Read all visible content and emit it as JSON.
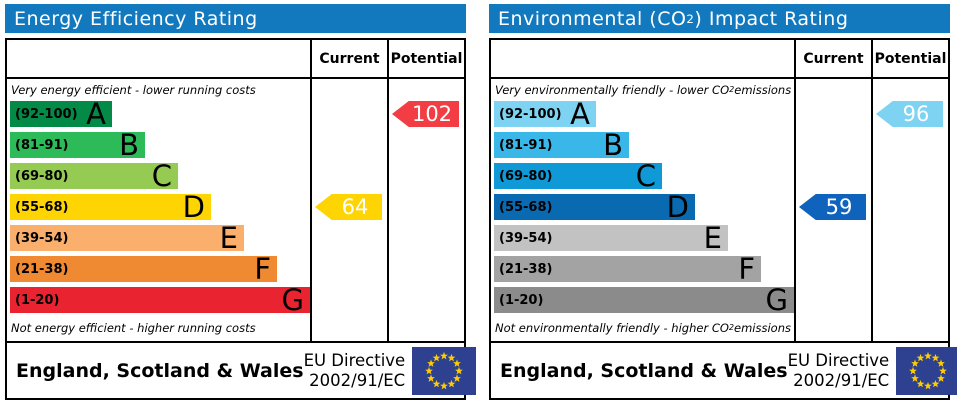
{
  "labels": {
    "current": "Current",
    "potential": "Potential"
  },
  "panels": [
    {
      "id": "energy-efficiency",
      "title": {
        "pre": "Energy Efficiency Rating",
        "sub": "",
        "post": ""
      },
      "header_color": "#1379bf",
      "top_caption": {
        "pre": "Very energy efficient - lower running costs",
        "sub": "",
        "post": ""
      },
      "bottom_caption": {
        "pre": "Not energy efficient - higher running costs",
        "sub": "",
        "post": ""
      },
      "bands": [
        {
          "letter": "A",
          "range": "(92-100)",
          "color": "#028a46",
          "width_pct": 34
        },
        {
          "letter": "B",
          "range": "(81-91)",
          "color": "#2dba58",
          "width_pct": 45
        },
        {
          "letter": "C",
          "range": "(69-80)",
          "color": "#95ca53",
          "width_pct": 56
        },
        {
          "letter": "D",
          "range": "(55-68)",
          "color": "#fed402",
          "width_pct": 67
        },
        {
          "letter": "E",
          "range": "(39-54)",
          "color": "#fbaf6d",
          "width_pct": 78
        },
        {
          "letter": "F",
          "range": "(21-38)",
          "color": "#f08a32",
          "width_pct": 89
        },
        {
          "letter": "G",
          "range": "(1-20)",
          "color": "#ea2330",
          "width_pct": 100
        }
      ],
      "current": {
        "value": 64,
        "color": "#fed402"
      },
      "potential": {
        "value": 102,
        "color": "#f13d43"
      },
      "footer": {
        "region": "England, Scotland & Wales",
        "directive_line1": "EU Directive",
        "directive_line2": "2002/91/EC"
      }
    },
    {
      "id": "environmental-impact",
      "title": {
        "pre": "Environmental (CO",
        "sub": "2",
        "post": ") Impact Rating"
      },
      "header_color": "#1379bf",
      "top_caption": {
        "pre": "Very environmentally friendly - lower CO",
        "sub": "2",
        "post": " emissions"
      },
      "bottom_caption": {
        "pre": "Not environmentally friendly - higher CO",
        "sub": "2",
        "post": " emissions"
      },
      "bands": [
        {
          "letter": "A",
          "range": "(92-100)",
          "color": "#7ed3f3",
          "width_pct": 34
        },
        {
          "letter": "B",
          "range": "(81-91)",
          "color": "#39b7e9",
          "width_pct": 45
        },
        {
          "letter": "C",
          "range": "(69-80)",
          "color": "#0f99d6",
          "width_pct": 56
        },
        {
          "letter": "D",
          "range": "(55-68)",
          "color": "#0a6ab1",
          "width_pct": 67
        },
        {
          "letter": "E",
          "range": "(39-54)",
          "color": "#c2c2c2",
          "width_pct": 78
        },
        {
          "letter": "F",
          "range": "(21-38)",
          "color": "#a3a3a3",
          "width_pct": 89
        },
        {
          "letter": "G",
          "range": "(1-20)",
          "color": "#8b8b8b",
          "width_pct": 100
        }
      ],
      "current": {
        "value": 59,
        "color": "#0f63bd"
      },
      "potential": {
        "value": 96,
        "color": "#7ed3f3"
      },
      "footer": {
        "region": "England, Scotland & Wales",
        "directive_line1": "EU Directive",
        "directive_line2": "2002/91/EC"
      }
    }
  ],
  "eu_flag": {
    "background": "#2e4191",
    "star_color": "#ffcc00",
    "star_count": 12
  },
  "chart_data": [
    {
      "type": "bar",
      "title": "Energy Efficiency Rating",
      "subtitle_top": "Very energy efficient - lower running costs",
      "subtitle_bottom": "Not energy efficient - higher running costs",
      "categories": [
        "A",
        "B",
        "C",
        "D",
        "E",
        "F",
        "G"
      ],
      "band_ranges": [
        "92-100",
        "81-91",
        "69-80",
        "55-68",
        "39-54",
        "21-38",
        "1-20"
      ],
      "band_colors": [
        "#028a46",
        "#2dba58",
        "#95ca53",
        "#fed402",
        "#fbaf6d",
        "#f08a32",
        "#ea2330"
      ],
      "series": [
        {
          "name": "Current",
          "value": 64,
          "band": "D",
          "color": "#fed402"
        },
        {
          "name": "Potential",
          "value": 102,
          "band": "A",
          "color": "#f13d43"
        }
      ],
      "xlim": [
        1,
        100
      ],
      "legend_position": "top-columns",
      "footer": "England, Scotland & Wales — EU Directive 2002/91/EC"
    },
    {
      "type": "bar",
      "title": "Environmental (CO2) Impact Rating",
      "subtitle_top": "Very environmentally friendly - lower CO2 emissions",
      "subtitle_bottom": "Not environmentally friendly - higher CO2 emissions",
      "categories": [
        "A",
        "B",
        "C",
        "D",
        "E",
        "F",
        "G"
      ],
      "band_ranges": [
        "92-100",
        "81-91",
        "69-80",
        "55-68",
        "39-54",
        "21-38",
        "1-20"
      ],
      "band_colors": [
        "#7ed3f3",
        "#39b7e9",
        "#0f99d6",
        "#0a6ab1",
        "#c2c2c2",
        "#a3a3a3",
        "#8b8b8b"
      ],
      "series": [
        {
          "name": "Current",
          "value": 59,
          "band": "D",
          "color": "#0f63bd"
        },
        {
          "name": "Potential",
          "value": 96,
          "band": "A",
          "color": "#7ed3f3"
        }
      ],
      "xlim": [
        1,
        100
      ],
      "legend_position": "top-columns",
      "footer": "England, Scotland & Wales — EU Directive 2002/91/EC"
    }
  ]
}
